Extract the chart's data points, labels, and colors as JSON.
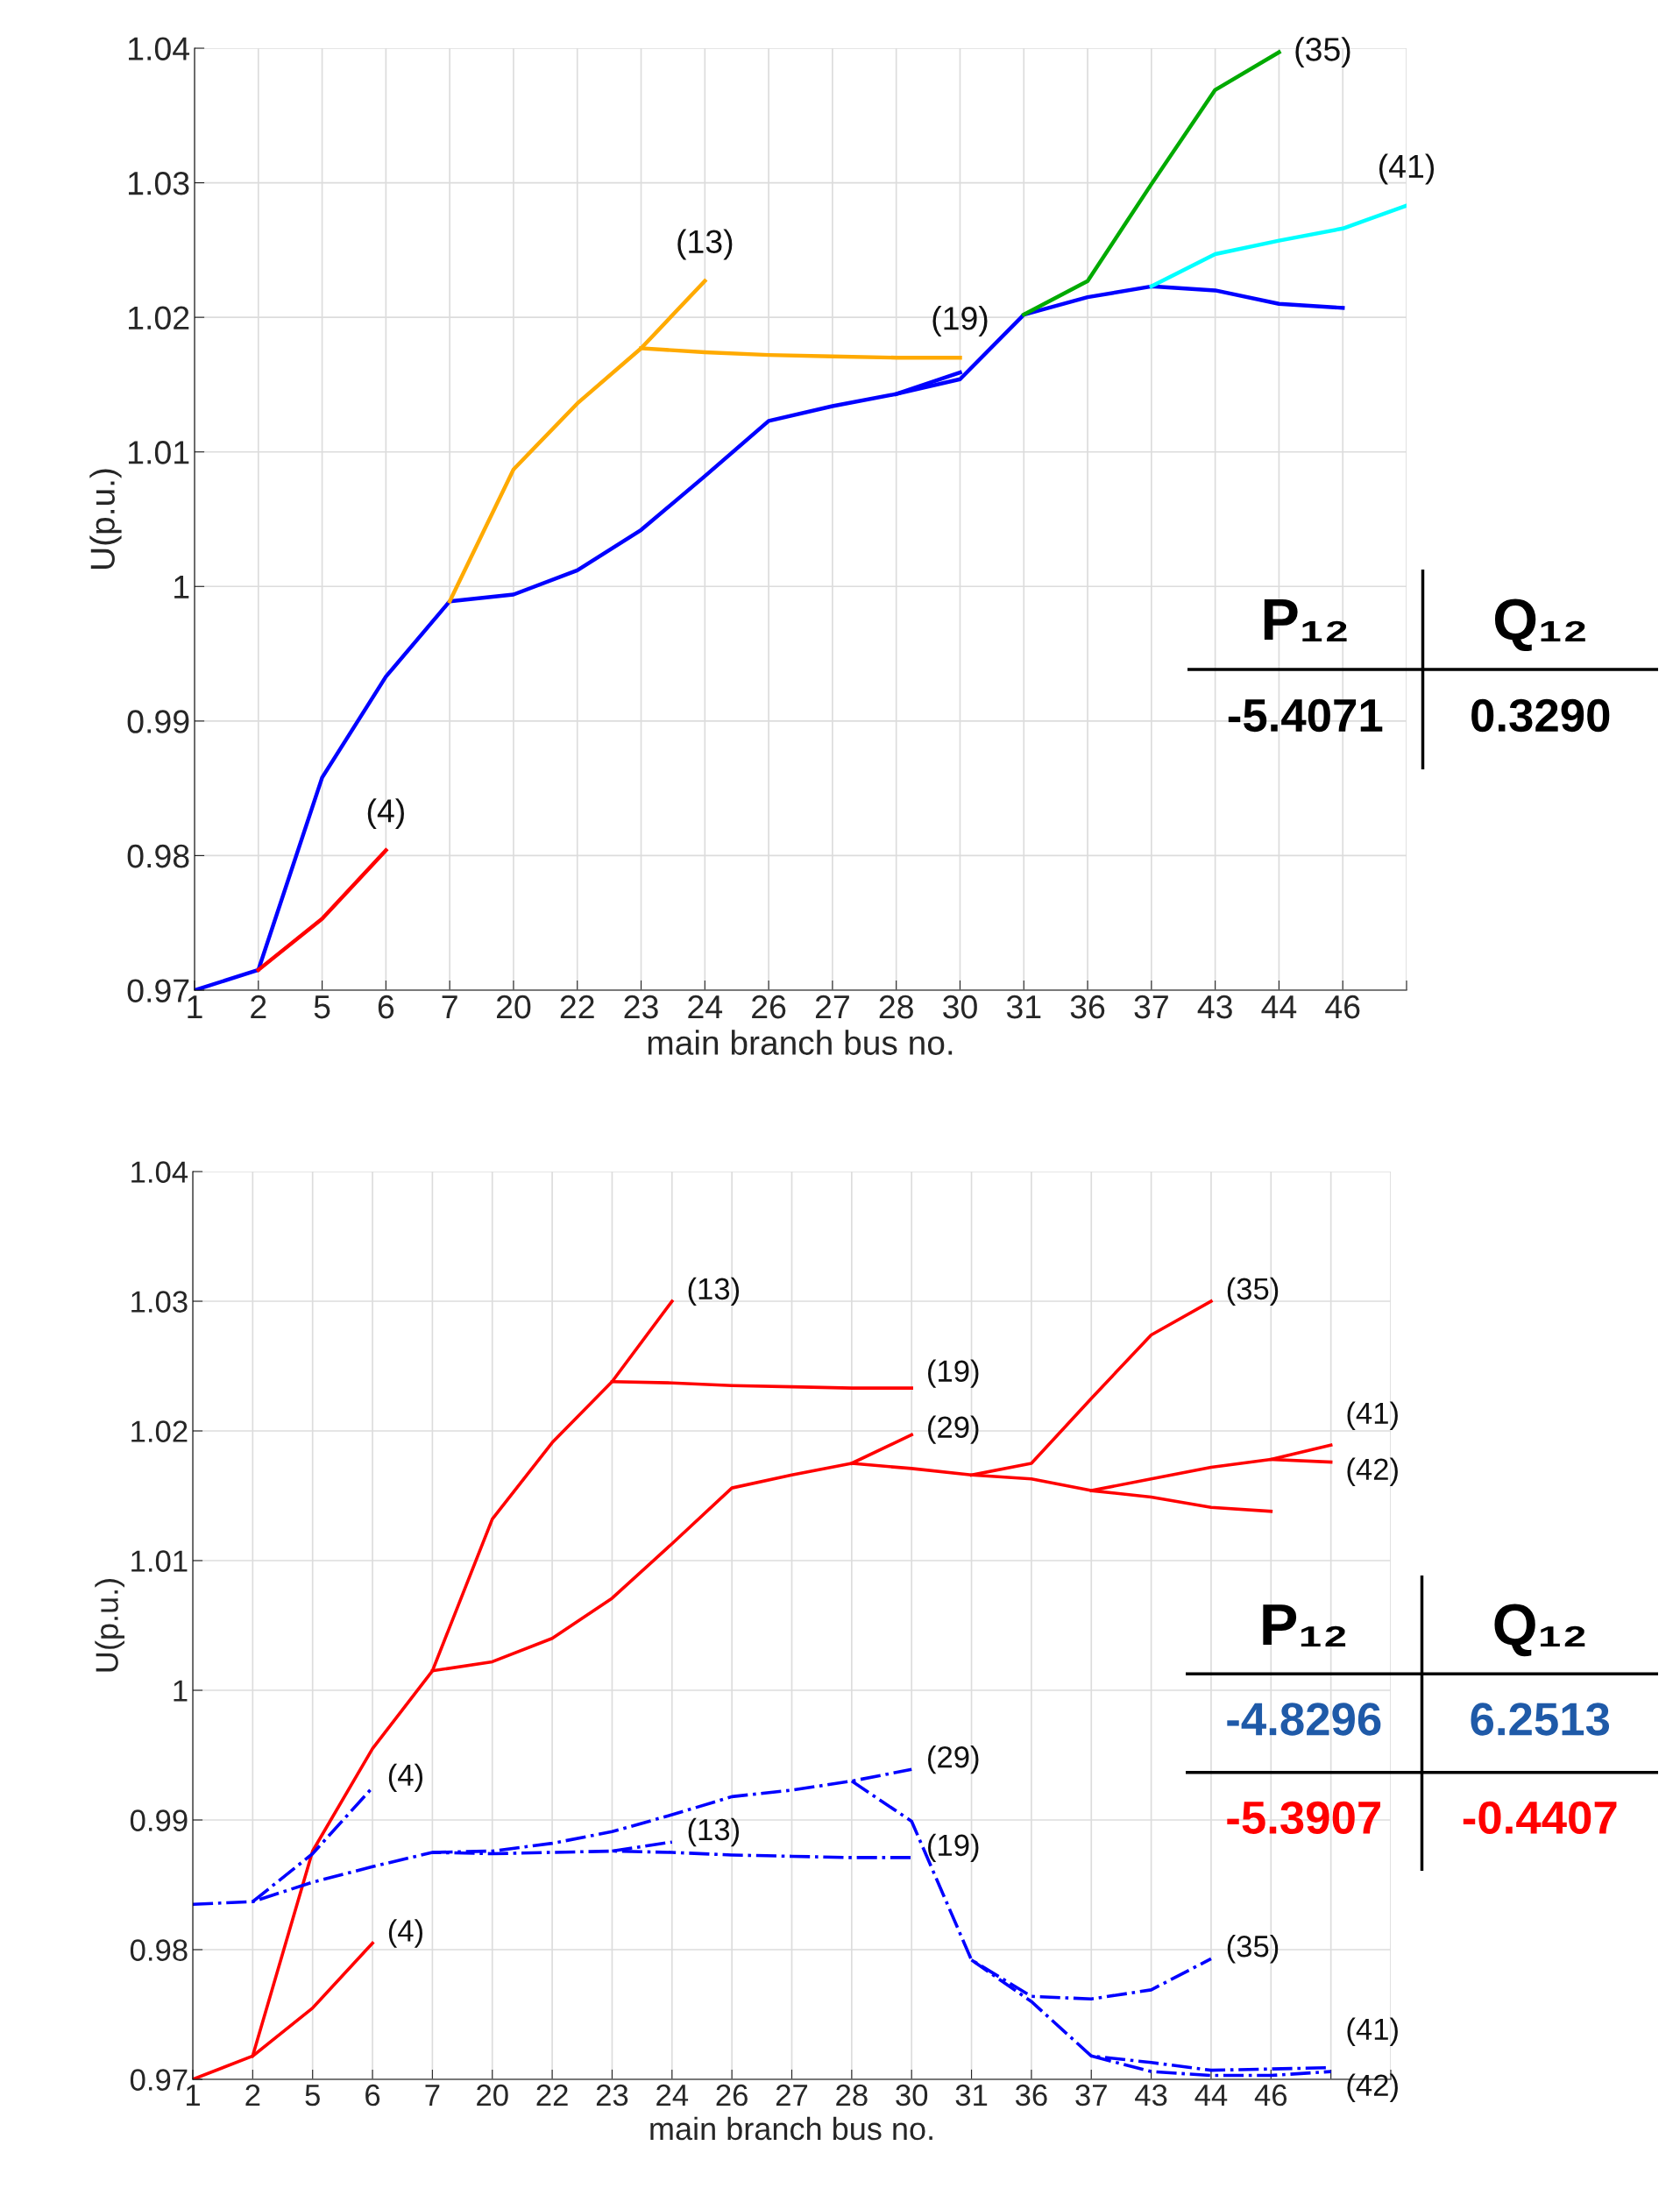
{
  "chart_data": [
    {
      "type": "line",
      "xlabel": "main branch bus no.",
      "ylabel": "U(p.u.)",
      "grid": true,
      "categories": [
        "1",
        "2",
        "5",
        "6",
        "7",
        "20",
        "22",
        "23",
        "24",
        "26",
        "27",
        "28",
        "30",
        "31",
        "36",
        "37",
        "43",
        "44",
        "46",
        null
      ],
      "ylim": [
        0.97,
        1.04
      ],
      "yticks": [
        0.97,
        0.98,
        0.99,
        1,
        1.01,
        1.02,
        1.03,
        1.04
      ],
      "series": [
        {
          "color": "#0000ff",
          "values": [
            0.97,
            0.9715,
            0.9858,
            0.9933,
            0.9989,
            0.9994,
            1.0012,
            1.0042,
            1.0082,
            1.0123,
            1.0134,
            1.0143,
            1.0154,
            1.0202,
            1.0215,
            1.0223,
            1.022,
            1.021,
            1.0207,
            null
          ]
        },
        {
          "color": "#0000ff",
          "values": [
            null,
            null,
            null,
            null,
            null,
            null,
            null,
            null,
            null,
            null,
            null,
            1.0143,
            1.0159,
            null,
            null,
            null,
            null,
            null,
            null,
            null
          ]
        },
        {
          "name": "(4)",
          "color": "#ff0000",
          "values": [
            null,
            0.9715,
            0.9753,
            0.9804,
            null,
            null,
            null,
            null,
            null,
            null,
            null,
            null,
            null,
            null,
            null,
            null,
            null,
            null,
            null,
            null
          ]
        },
        {
          "name": "(13)",
          "color": "#ffaa00",
          "values": [
            null,
            null,
            null,
            null,
            0.9989,
            1.0087,
            1.0136,
            1.0177,
            1.0227,
            null,
            null,
            null,
            null,
            null,
            null,
            null,
            null,
            null,
            null,
            null
          ]
        },
        {
          "name": "(19)",
          "color": "#ffaa00",
          "values": [
            null,
            null,
            null,
            null,
            null,
            null,
            null,
            1.0177,
            1.0174,
            1.0172,
            1.0171,
            1.017,
            1.017,
            null,
            null,
            null,
            null,
            null,
            null,
            null
          ]
        },
        {
          "name": "(35)",
          "color": "#00aa00",
          "values": [
            null,
            null,
            null,
            null,
            null,
            null,
            null,
            null,
            null,
            null,
            null,
            null,
            null,
            1.0202,
            1.0227,
            1.0299,
            1.0369,
            1.0397,
            null,
            null
          ]
        },
        {
          "name": "(41)",
          "color": "#00ffff",
          "values": [
            null,
            null,
            null,
            null,
            null,
            null,
            null,
            null,
            null,
            null,
            null,
            null,
            null,
            null,
            null,
            1.0223,
            1.0247,
            1.0257,
            1.0266,
            1.0283
          ]
        }
      ]
    },
    {
      "type": "other",
      "categories": [
        "P₁₂",
        "Q₁₂"
      ],
      "series": [
        {
          "color": "#000000",
          "values": [
            -5.4071,
            0.329
          ],
          "value_labels": [
            "-5.4071",
            "0.3290"
          ]
        }
      ]
    },
    {
      "type": "line",
      "xlabel": "main branch bus no.",
      "ylabel": "U(p.u.)",
      "grid": true,
      "categories": [
        "1",
        "2",
        "5",
        "6",
        "7",
        "20",
        "22",
        "23",
        "24",
        "26",
        "27",
        "28",
        "30",
        "31",
        "36",
        "37",
        "43",
        "44",
        "46",
        null,
        null
      ],
      "ylim": [
        0.97,
        1.04
      ],
      "yticks": [
        0.97,
        0.98,
        0.99,
        1,
        1.01,
        1.02,
        1.03,
        1.04
      ],
      "series": [
        {
          "name": "(4)",
          "color": "#ff0000",
          "values": [
            null,
            0.9718,
            0.9755,
            0.9805,
            null,
            null,
            null,
            null,
            null,
            null,
            null,
            null,
            null,
            null,
            null,
            null,
            null,
            null,
            null,
            null,
            null
          ]
        },
        {
          "name": "(13)",
          "color": "#ff0000",
          "values": [
            0.97,
            0.9718,
            0.9876,
            0.9955,
            1.0015,
            1.0132,
            1.0191,
            1.0238,
            1.03,
            null,
            null,
            null,
            null,
            null,
            null,
            null,
            null,
            null,
            null,
            null,
            null
          ]
        },
        {
          "name": "(19)",
          "color": "#ff0000",
          "values": [
            null,
            null,
            null,
            null,
            null,
            null,
            null,
            1.0238,
            1.0237,
            1.0235,
            1.0234,
            1.0233,
            1.0233,
            null,
            null,
            null,
            null,
            null,
            null,
            null,
            null
          ]
        },
        {
          "color": "#ff0000",
          "values": [
            null,
            null,
            null,
            null,
            1.0015,
            1.0022,
            1.004,
            1.0071,
            1.0113,
            1.0156,
            1.0166,
            1.0175,
            1.0171,
            1.0166,
            1.0163,
            1.0154,
            1.0149,
            1.0141,
            1.0138,
            null,
            null
          ]
        },
        {
          "name": "(29)",
          "color": "#ff0000",
          "values": [
            null,
            null,
            null,
            null,
            null,
            null,
            null,
            null,
            null,
            null,
            null,
            1.0175,
            1.0197,
            null,
            null,
            null,
            null,
            null,
            null,
            null,
            null
          ]
        },
        {
          "name": "(35)",
          "color": "#ff0000",
          "values": [
            null,
            null,
            null,
            null,
            null,
            null,
            null,
            null,
            null,
            null,
            null,
            null,
            null,
            1.0166,
            1.0175,
            1.0225,
            1.0274,
            1.03,
            null,
            null,
            null
          ]
        },
        {
          "name": "(41)",
          "color": "#ff0000",
          "values": [
            null,
            null,
            null,
            null,
            null,
            null,
            null,
            null,
            null,
            null,
            null,
            null,
            null,
            null,
            null,
            1.0154,
            1.0163,
            1.0172,
            1.0178,
            1.0189,
            null
          ]
        },
        {
          "name": "(42)",
          "color": "#ff0000",
          "values": [
            null,
            null,
            null,
            null,
            null,
            null,
            null,
            null,
            null,
            null,
            null,
            null,
            null,
            null,
            null,
            null,
            null,
            null,
            1.0178,
            1.0176,
            null
          ]
        },
        {
          "name": "(19)",
          "color": "#0000ff",
          "line_style": "dashdot",
          "values": [
            0.9835,
            0.9837,
            0.9852,
            0.9864,
            0.9875,
            0.9874,
            0.9875,
            0.9876,
            0.9875,
            0.9873,
            0.9872,
            0.9871,
            0.9871,
            null,
            null,
            null,
            null,
            null,
            null,
            null,
            null
          ]
        },
        {
          "name": "(4)",
          "color": "#0000ff",
          "line_style": "dashdot",
          "values": [
            null,
            0.9837,
            0.9874,
            0.9925,
            null,
            null,
            null,
            null,
            null,
            null,
            null,
            null,
            null,
            null,
            null,
            null,
            null,
            null,
            null,
            null,
            null
          ]
        },
        {
          "name": "(13)",
          "color": "#0000ff",
          "line_style": "dashdot",
          "values": [
            null,
            null,
            null,
            null,
            null,
            null,
            null,
            0.9876,
            0.9883,
            null,
            null,
            null,
            null,
            null,
            null,
            null,
            null,
            null,
            null,
            null,
            null
          ]
        },
        {
          "name": "(29)",
          "color": "#0000ff",
          "line_style": "dashdot",
          "values": [
            null,
            null,
            null,
            null,
            0.9875,
            0.9876,
            0.9882,
            0.9891,
            0.9904,
            0.9918,
            0.9923,
            0.993,
            0.9939,
            null,
            null,
            null,
            null,
            null,
            null,
            null,
            null
          ]
        },
        {
          "name": "(35)",
          "color": "#0000ff",
          "line_style": "dashdot",
          "values": [
            null,
            null,
            null,
            null,
            null,
            null,
            null,
            null,
            null,
            null,
            null,
            0.993,
            0.9899,
            0.9792,
            0.9764,
            0.9762,
            0.9769,
            0.9793,
            null,
            null,
            null
          ]
        },
        {
          "name": "(41)",
          "color": "#0000ff",
          "line_style": "dashdot",
          "values": [
            null,
            null,
            null,
            null,
            null,
            null,
            null,
            null,
            null,
            null,
            null,
            null,
            null,
            0.9792,
            0.976,
            0.9718,
            0.9713,
            0.9707,
            0.9708,
            0.9709,
            null
          ]
        },
        {
          "name": "(42)",
          "color": "#0000ff",
          "line_style": "dashdot",
          "values": [
            null,
            null,
            null,
            null,
            null,
            null,
            null,
            null,
            null,
            null,
            null,
            null,
            null,
            null,
            null,
            0.9718,
            0.9706,
            0.9703,
            0.9703,
            0.9706,
            null
          ]
        }
      ]
    },
    {
      "type": "other",
      "categories": [
        "P₁₂",
        "Q₁₂"
      ],
      "series": [
        {
          "color": "#1f5aa8",
          "values": [
            -4.8296,
            6.2513
          ],
          "value_labels": [
            "-4.8296",
            "6.2513"
          ]
        },
        {
          "color": "#ff0000",
          "values": [
            -5.3907,
            -0.4407
          ],
          "value_labels": [
            "-5.3907",
            "-0.4407"
          ]
        }
      ]
    }
  ]
}
